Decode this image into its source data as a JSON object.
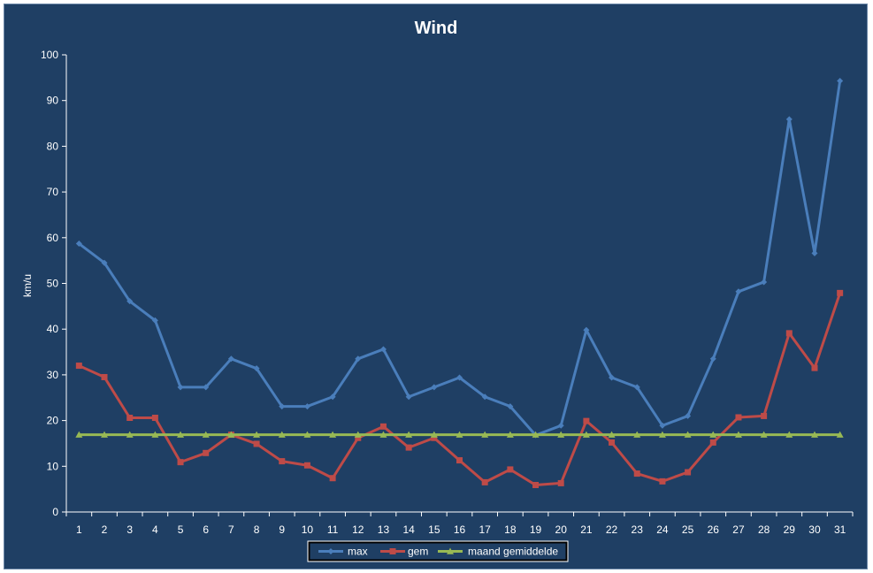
{
  "chart_data": {
    "type": "line",
    "title": "Wind",
    "ylabel": "km/u",
    "xlabel": "",
    "ylim": [
      0,
      100
    ],
    "yticks": [
      0,
      10,
      20,
      30,
      40,
      50,
      60,
      70,
      80,
      90,
      100
    ],
    "grid": false,
    "legend_position": "bottom",
    "categories": [
      "1",
      "2",
      "3",
      "4",
      "5",
      "6",
      "7",
      "8",
      "9",
      "10",
      "11",
      "12",
      "13",
      "14",
      "15",
      "16",
      "17",
      "18",
      "19",
      "20",
      "21",
      "22",
      "23",
      "24",
      "25",
      "26",
      "27",
      "28",
      "29",
      "30",
      "31"
    ],
    "series": [
      {
        "name": "max",
        "color": "#4a7ebb",
        "marker": "diamond",
        "values": [
          58.7,
          54.5,
          46.1,
          41.9,
          27.3,
          27.3,
          33.5,
          31.4,
          23.1,
          23.1,
          25.2,
          33.5,
          35.6,
          25.2,
          27.3,
          29.4,
          25.2,
          23.1,
          16.8,
          18.9,
          39.8,
          29.4,
          27.3,
          18.9,
          21.0,
          33.5,
          48.2,
          50.3,
          85.9,
          56.6,
          94.3
        ]
      },
      {
        "name": "gem",
        "color": "#be4b48",
        "marker": "square",
        "values": [
          32.0,
          29.5,
          20.6,
          20.6,
          10.9,
          12.9,
          16.9,
          14.9,
          11.1,
          10.2,
          7.4,
          16.2,
          18.7,
          14.1,
          16.2,
          11.3,
          6.5,
          9.3,
          5.9,
          6.3,
          19.9,
          15.2,
          8.4,
          6.7,
          8.7,
          15.2,
          20.7,
          21.0,
          39.1,
          31.5,
          47.9
        ]
      },
      {
        "name": "maand gemiddelde",
        "color": "#98b954",
        "marker": "triangle",
        "values": [
          16.9,
          16.9,
          16.9,
          16.9,
          16.9,
          16.9,
          16.9,
          16.9,
          16.9,
          16.9,
          16.9,
          16.9,
          16.9,
          16.9,
          16.9,
          16.9,
          16.9,
          16.9,
          16.9,
          16.9,
          16.9,
          16.9,
          16.9,
          16.9,
          16.9,
          16.9,
          16.9,
          16.9,
          16.9,
          16.9,
          16.9
        ]
      }
    ],
    "colors": {
      "background": "#1f3f64",
      "text": "#ffffff",
      "axis": "#ffffff",
      "legend_background": "#ffffff",
      "legend_border": "#000000"
    }
  }
}
